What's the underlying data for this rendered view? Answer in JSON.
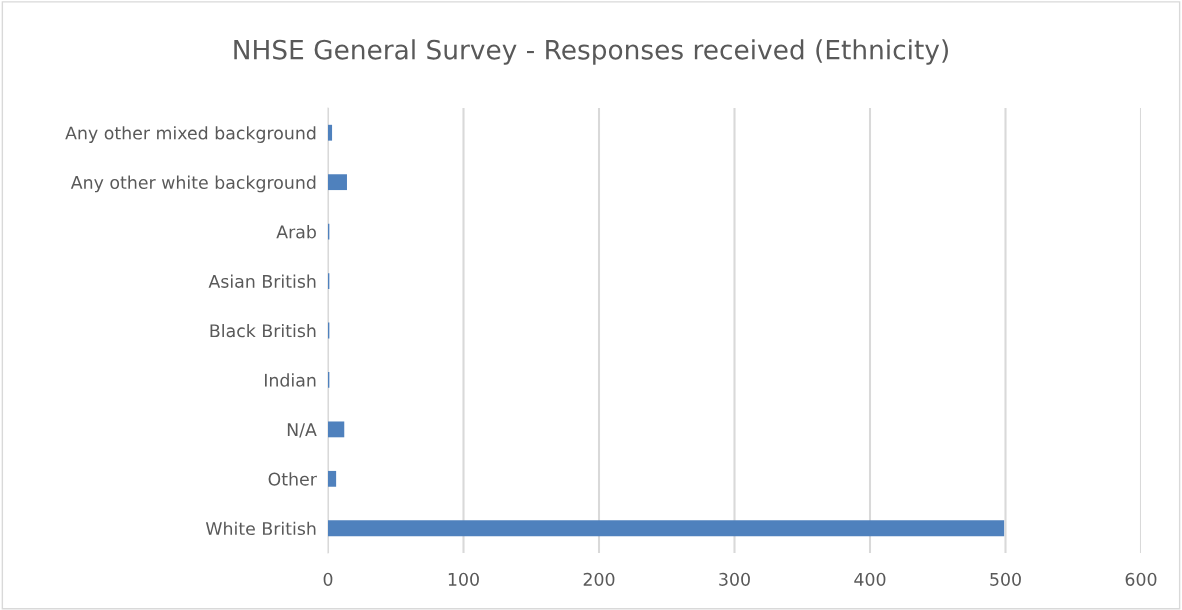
{
  "chart_data": {
    "type": "bar",
    "orientation": "horizontal",
    "title": "NHSE General Survey - Responses received (Ethnicity)",
    "categories": [
      "Any other mixed background",
      "Any other white background",
      "Arab",
      "Asian British",
      "Black British",
      "Indian",
      "N/A",
      "Other",
      "White British"
    ],
    "values": [
      3,
      14,
      1,
      1,
      1,
      1,
      12,
      6,
      499
    ],
    "color": "#4f81bd",
    "xlim": [
      0,
      600
    ],
    "xticks": [
      0,
      100,
      200,
      300,
      400,
      500,
      600
    ],
    "grid": "x"
  }
}
